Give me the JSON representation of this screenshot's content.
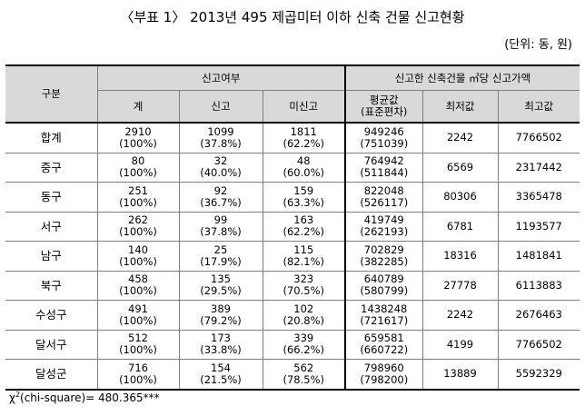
{
  "title": "〈부표 1〉 2013년 495 제곱미터 이하 신축 건물 신고현황",
  "unit": "(단위: 동, 원)",
  "header": {
    "col_group": "구분",
    "report_group": "신고여부",
    "price_group": "신고한 신축건물 ㎡당 신고가액",
    "total": "계",
    "reported": "신고",
    "unreported": "미신고",
    "mean": "평균값",
    "sd": "(표준편차)",
    "min": "최저값",
    "max": "최고값"
  },
  "rows": [
    {
      "name": "합계",
      "total": "2910",
      "total_pct": "(100%)",
      "reported": "1099",
      "reported_pct": "(37.8%)",
      "unreported": "1811",
      "unreported_pct": "(62.2%)",
      "mean": "949246",
      "sd": "(751039)",
      "min": "2242",
      "max": "7766502"
    },
    {
      "name": "중구",
      "total": "80",
      "total_pct": "(100%)",
      "reported": "32",
      "reported_pct": "(40.0%)",
      "unreported": "48",
      "unreported_pct": "(60.0%)",
      "mean": "764942",
      "sd": "(511844)",
      "min": "6569",
      "max": "2317442"
    },
    {
      "name": "동구",
      "total": "251",
      "total_pct": "(100%)",
      "reported": "92",
      "reported_pct": "(36.7%)",
      "unreported": "159",
      "unreported_pct": "(63.3%)",
      "mean": "822048",
      "sd": "(526117)",
      "min": "80306",
      "max": "3365478"
    },
    {
      "name": "서구",
      "total": "262",
      "total_pct": "(100%)",
      "reported": "99",
      "reported_pct": "(37.8%)",
      "unreported": "163",
      "unreported_pct": "(62.2%)",
      "mean": "419749",
      "sd": "(262193)",
      "min": "6781",
      "max": "1193577"
    },
    {
      "name": "남구",
      "total": "140",
      "total_pct": "(100%)",
      "reported": "25",
      "reported_pct": "(17.9%)",
      "unreported": "115",
      "unreported_pct": "(82.1%)",
      "mean": "702829",
      "sd": "(382285)",
      "min": "18316",
      "max": "1481841"
    },
    {
      "name": "북구",
      "total": "458",
      "total_pct": "(100%)",
      "reported": "135",
      "reported_pct": "(29.5%)",
      "unreported": "323",
      "unreported_pct": "(70.5%)",
      "mean": "640789",
      "sd": "(580799)",
      "min": "27778",
      "max": "6113883"
    },
    {
      "name": "수성구",
      "total": "491",
      "total_pct": "(100%)",
      "reported": "389",
      "reported_pct": "(79.2%)",
      "unreported": "102",
      "unreported_pct": "(20.8%)",
      "mean": "1438248",
      "sd": "(721617)",
      "min": "2242",
      "max": "2676463"
    },
    {
      "name": "달서구",
      "total": "512",
      "total_pct": "(100%)",
      "reported": "173",
      "reported_pct": "(33.8%)",
      "unreported": "339",
      "unreported_pct": "(66.2%)",
      "mean": "659581",
      "sd": "(660722)",
      "min": "4199",
      "max": "7766502"
    },
    {
      "name": "달성군",
      "total": "716",
      "total_pct": "(100%)",
      "reported": "154",
      "reported_pct": "(21.5%)",
      "unreported": "562",
      "unreported_pct": "(78.5%)",
      "mean": "798960",
      "sd": "(798200)",
      "min": "13889",
      "max": "5592329"
    }
  ],
  "footnote": {
    "chi": "χ",
    "sup": "2",
    "rest": "(chi-square)= 480.365***"
  }
}
